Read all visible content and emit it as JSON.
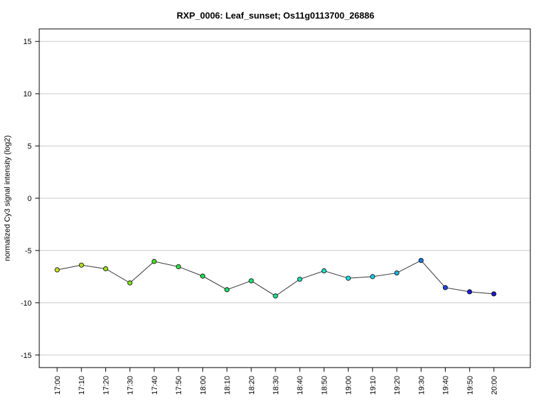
{
  "chart_data": {
    "type": "line",
    "title": "RXP_0006: Leaf_sunset; Os11g0113700_26886",
    "xlabel": "",
    "ylabel": "normalized Cy3 signal intensity (log2)",
    "ylim": [
      -16.2,
      16.2
    ],
    "yticks": [
      -15,
      -10,
      -5,
      0,
      5,
      10,
      15
    ],
    "grid": "horizontal",
    "categories": [
      "17:00",
      "17:10",
      "17:20",
      "17:30",
      "17:40",
      "17:50",
      "18:00",
      "18:10",
      "18:20",
      "18:30",
      "18:40",
      "18:50",
      "19:00",
      "19:10",
      "19:20",
      "19:30",
      "19:40",
      "19:50",
      "20:00"
    ],
    "series": [
      {
        "values": [
          -6.85,
          -6.4,
          -6.75,
          -8.1,
          -6.05,
          -6.55,
          -7.45,
          -8.75,
          -7.9,
          -9.35,
          -7.75,
          -6.95,
          -7.65,
          -7.5,
          -7.15,
          -5.95,
          -8.55,
          -8.95,
          -9.15
        ],
        "line_color": "#333333",
        "point_colors": [
          "#c8e01e",
          "#b2e01e",
          "#9ce01e",
          "#86e01e",
          "#46e01e",
          "#30e046",
          "#1ee05a",
          "#1ee064",
          "#1ee078",
          "#1ee08c",
          "#1ee0b4",
          "#1ee0c8",
          "#1ee0e0",
          "#1ec8e0",
          "#1eb4e0",
          "#1e78e0",
          "#1e46e0",
          "#1e1ee0",
          "#1e1ec8"
        ]
      }
    ]
  }
}
